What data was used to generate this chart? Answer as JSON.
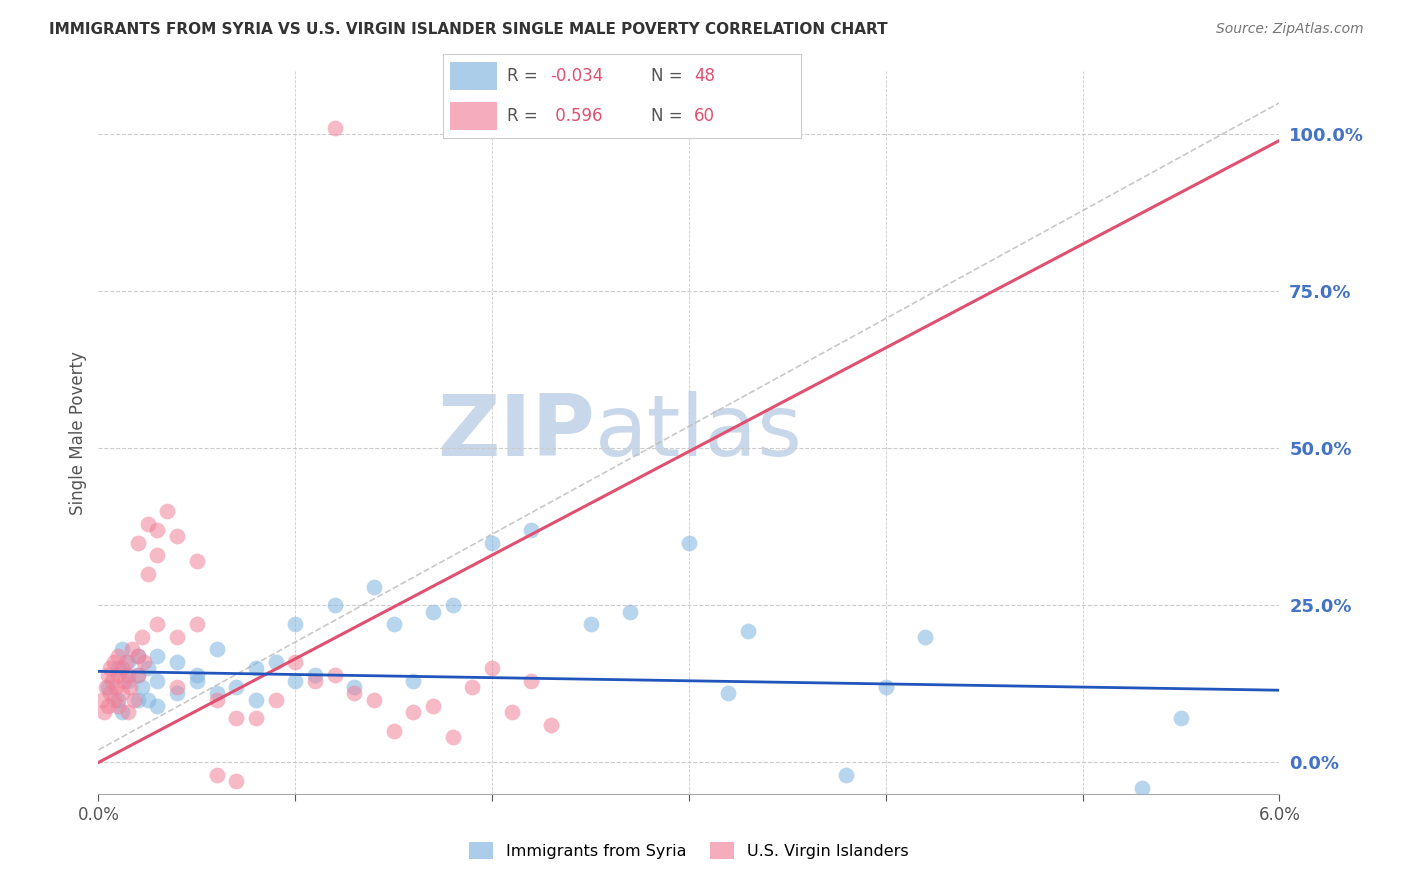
{
  "title": "IMMIGRANTS FROM SYRIA VS U.S. VIRGIN ISLANDER SINGLE MALE POVERTY CORRELATION CHART",
  "source": "Source: ZipAtlas.com",
  "ylabel": "Single Male Poverty",
  "right_yticks": [
    0.0,
    0.25,
    0.5,
    0.75,
    1.0
  ],
  "right_yticklabels": [
    "0.0%",
    "25.0%",
    "50.0%",
    "75.0%",
    "100.0%"
  ],
  "xlim": [
    0.0,
    0.06
  ],
  "ylim": [
    -0.05,
    1.1
  ],
  "series1_label": "Immigrants from Syria",
  "series1_color": "#7fb3e0",
  "series2_label": "U.S. Virgin Islanders",
  "series2_color": "#f08098",
  "trend1_color": "#2255bb",
  "trend2_color": "#e05070",
  "trend1_intercept": 0.145,
  "trend1_slope": -0.5,
  "trend2_intercept": 0.0,
  "trend2_slope": 16.5,
  "refline_x": [
    0.0,
    0.06
  ],
  "refline_y": [
    0.02,
    1.05
  ],
  "grid_color": "#cccccc",
  "grid_linestyle": "--",
  "watermark_zip": "ZIP",
  "watermark_atlas": "atlas",
  "watermark_color": "#c8d8ea",
  "title_color": "#333333",
  "right_axis_color": "#4472c4",
  "series1_x": [
    0.0005,
    0.001,
    0.001,
    0.0012,
    0.0012,
    0.0015,
    0.0015,
    0.002,
    0.002,
    0.002,
    0.0022,
    0.0025,
    0.0025,
    0.003,
    0.003,
    0.003,
    0.004,
    0.004,
    0.005,
    0.005,
    0.006,
    0.006,
    0.007,
    0.008,
    0.008,
    0.009,
    0.01,
    0.01,
    0.011,
    0.012,
    0.013,
    0.014,
    0.015,
    0.016,
    0.017,
    0.018,
    0.02,
    0.022,
    0.025,
    0.027,
    0.03,
    0.032,
    0.033,
    0.038,
    0.04,
    0.042,
    0.053,
    0.055
  ],
  "series1_y": [
    0.12,
    0.1,
    0.15,
    0.08,
    0.18,
    0.13,
    0.16,
    0.1,
    0.14,
    0.17,
    0.12,
    0.1,
    0.15,
    0.09,
    0.13,
    0.17,
    0.11,
    0.16,
    0.14,
    0.13,
    0.11,
    0.18,
    0.12,
    0.15,
    0.1,
    0.16,
    0.13,
    0.22,
    0.14,
    0.25,
    0.12,
    0.28,
    0.22,
    0.13,
    0.24,
    0.25,
    0.35,
    0.37,
    0.22,
    0.24,
    0.35,
    0.11,
    0.21,
    -0.02,
    0.12,
    0.2,
    -0.04,
    0.07
  ],
  "series2_x": [
    0.0002,
    0.0003,
    0.0004,
    0.0005,
    0.0005,
    0.0006,
    0.0006,
    0.0007,
    0.0008,
    0.0008,
    0.0009,
    0.001,
    0.001,
    0.001,
    0.0012,
    0.0012,
    0.0013,
    0.0014,
    0.0015,
    0.0015,
    0.0016,
    0.0017,
    0.0018,
    0.002,
    0.002,
    0.002,
    0.0022,
    0.0023,
    0.0025,
    0.0025,
    0.003,
    0.003,
    0.003,
    0.0035,
    0.004,
    0.004,
    0.004,
    0.005,
    0.005,
    0.006,
    0.006,
    0.007,
    0.007,
    0.008,
    0.009,
    0.01,
    0.011,
    0.012,
    0.013,
    0.014,
    0.015,
    0.016,
    0.017,
    0.018,
    0.019,
    0.02,
    0.021,
    0.022,
    0.023,
    0.012
  ],
  "series2_y": [
    0.1,
    0.08,
    0.12,
    0.09,
    0.14,
    0.11,
    0.15,
    0.13,
    0.1,
    0.16,
    0.12,
    0.09,
    0.14,
    0.17,
    0.11,
    0.15,
    0.13,
    0.16,
    0.08,
    0.14,
    0.12,
    0.18,
    0.1,
    0.17,
    0.14,
    0.35,
    0.2,
    0.16,
    0.38,
    0.3,
    0.37,
    0.22,
    0.33,
    0.4,
    0.2,
    0.36,
    0.12,
    0.22,
    0.32,
    0.1,
    -0.02,
    0.07,
    -0.03,
    0.07,
    0.1,
    0.16,
    0.13,
    0.14,
    0.11,
    0.1,
    0.05,
    0.08,
    0.09,
    0.04,
    0.12,
    0.15,
    0.08,
    0.13,
    0.06,
    1.01
  ]
}
